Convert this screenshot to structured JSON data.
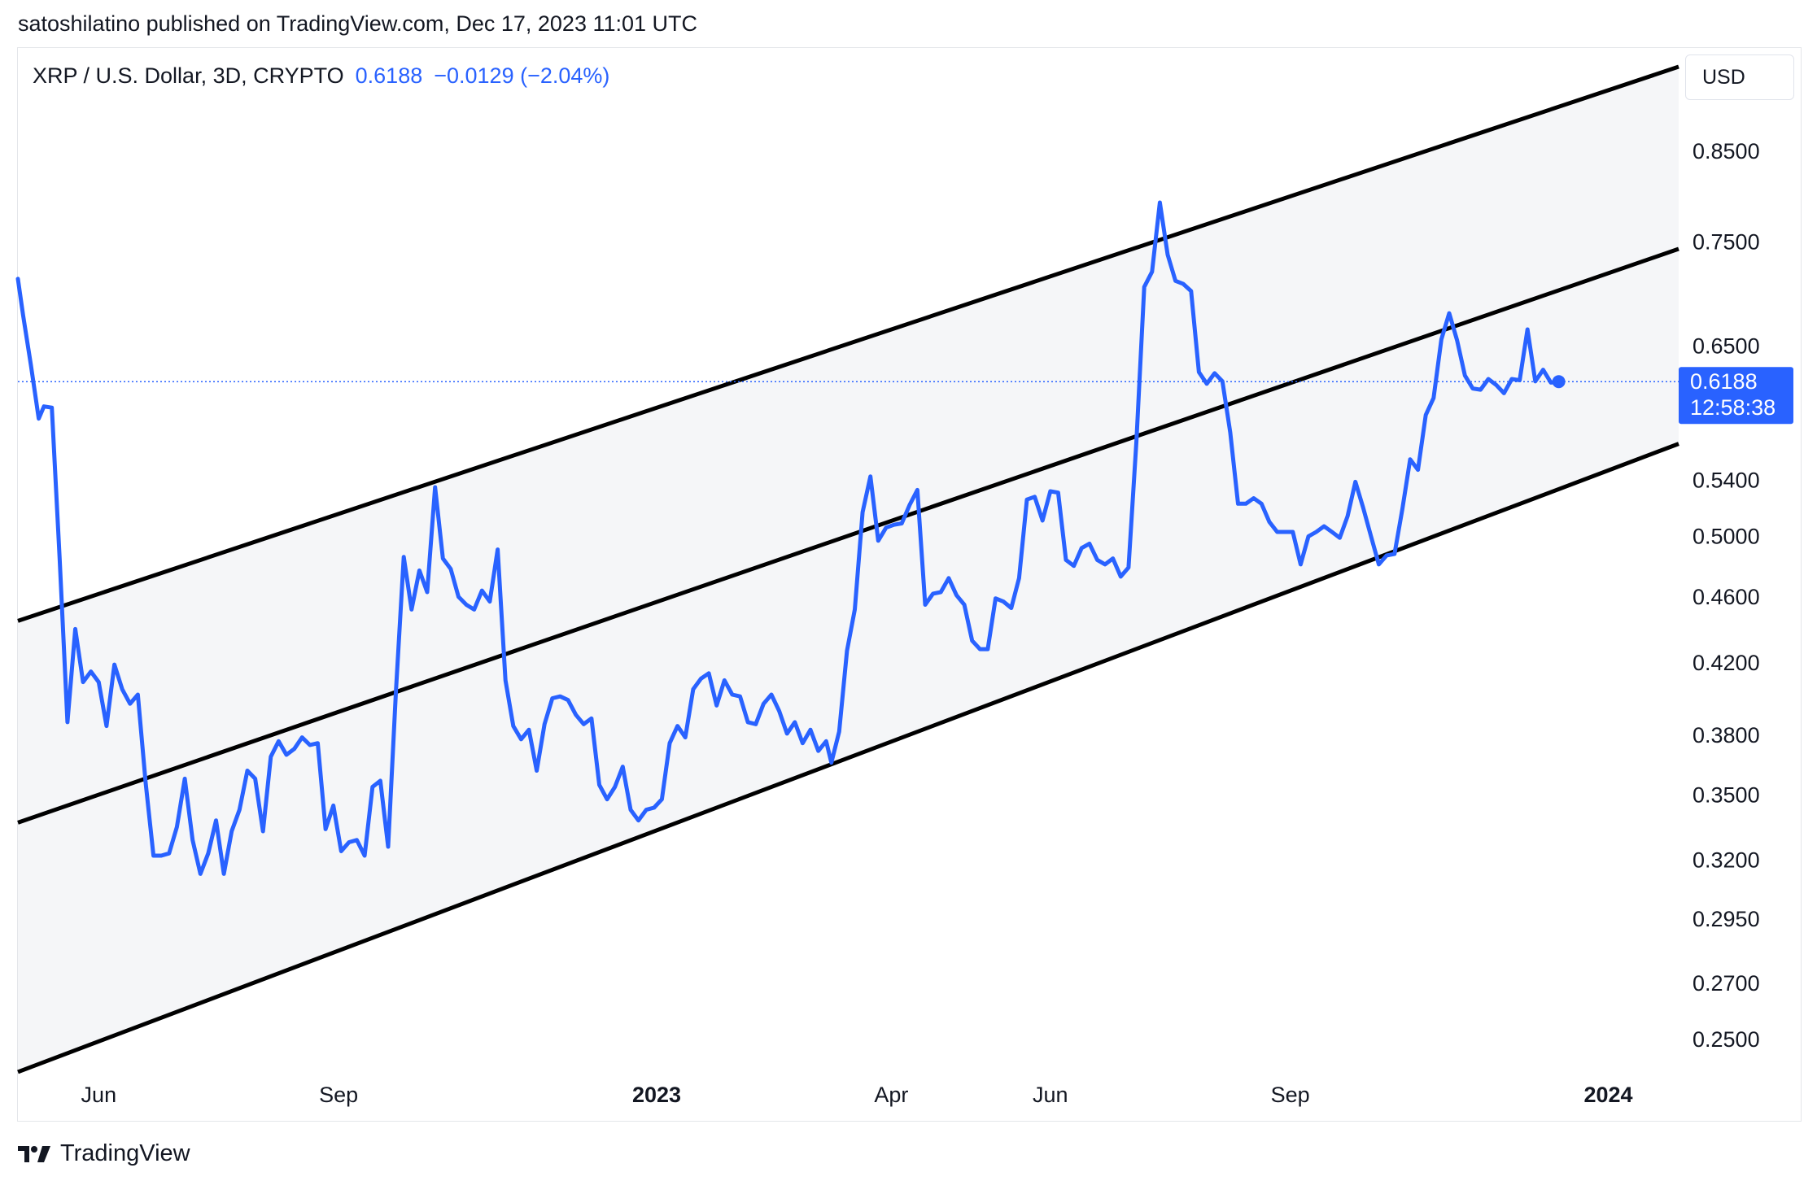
{
  "header": {
    "attribution": "satoshilatino published on TradingView.com, Dec 17, 2023 11:01 UTC"
  },
  "legend": {
    "symbol": "XRP / U.S. Dollar, 3D, CRYPTO",
    "last_price": "0.6188",
    "change": "−0.0129 (−2.04%)"
  },
  "currency_button": {
    "label": "USD"
  },
  "price_tag": {
    "price": "0.6188",
    "countdown": "12:58:38"
  },
  "footer": {
    "brand": "TradingView"
  },
  "colors": {
    "series": "#2962ff",
    "channel_lines": "#000000",
    "channel_fill": "#f5f6f8",
    "price_tag_bg": "#2962ff"
  },
  "icons": {
    "footer_logo": "tradingview-logo-icon"
  },
  "chart_data": {
    "type": "line",
    "title": "XRP / U.S. Dollar, 3D, CRYPTO",
    "y_scale": "log",
    "ylim": [
      0.235,
      0.98
    ],
    "y_ticks": [
      {
        "value": 0.85,
        "label": "0.8500"
      },
      {
        "value": 0.75,
        "label": "0.7500"
      },
      {
        "value": 0.65,
        "label": "0.6500"
      },
      {
        "value": 0.54,
        "label": "0.5400"
      },
      {
        "value": 0.5,
        "label": "0.5000"
      },
      {
        "value": 0.46,
        "label": "0.4600"
      },
      {
        "value": 0.42,
        "label": "0.4200"
      },
      {
        "value": 0.38,
        "label": "0.3800"
      },
      {
        "value": 0.35,
        "label": "0.3500"
      },
      {
        "value": 0.32,
        "label": "0.3200"
      },
      {
        "value": 0.295,
        "label": "0.2950"
      },
      {
        "value": 0.27,
        "label": "0.2700"
      },
      {
        "value": 0.25,
        "label": "0.2500"
      }
    ],
    "xlim": [
      "2022-05-01",
      "2024-01-28"
    ],
    "x_ticks": [
      {
        "date": "2022-06-01",
        "label": "Jun",
        "bold": false
      },
      {
        "date": "2022-09-01",
        "label": "Sep",
        "bold": false
      },
      {
        "date": "2023-01-01",
        "label": "2023",
        "bold": true
      },
      {
        "date": "2023-04-01",
        "label": "Apr",
        "bold": false
      },
      {
        "date": "2023-06-01",
        "label": "Jun",
        "bold": false
      },
      {
        "date": "2023-09-01",
        "label": "Sep",
        "bold": false
      },
      {
        "date": "2024-01-01",
        "label": "2024",
        "bold": true
      }
    ],
    "series": [
      {
        "values": [
          [
            "2022-05-01",
            0.713
          ],
          [
            "2022-05-03",
            0.678
          ],
          [
            "2022-05-06",
            0.633
          ],
          [
            "2022-05-09",
            0.588
          ],
          [
            "2022-05-11",
            0.598
          ],
          [
            "2022-05-14",
            0.597
          ],
          [
            "2022-05-17",
            0.485
          ],
          [
            "2022-05-20",
            0.387
          ],
          [
            "2022-05-23",
            0.44
          ],
          [
            "2022-05-26",
            0.409
          ],
          [
            "2022-05-29",
            0.415
          ],
          [
            "2022-06-01",
            0.409
          ],
          [
            "2022-06-04",
            0.385
          ],
          [
            "2022-06-07",
            0.419
          ],
          [
            "2022-06-10",
            0.405
          ],
          [
            "2022-06-13",
            0.397
          ],
          [
            "2022-06-16",
            0.402
          ],
          [
            "2022-06-19",
            0.356
          ],
          [
            "2022-06-22",
            0.322
          ],
          [
            "2022-06-25",
            0.322
          ],
          [
            "2022-06-28",
            0.323
          ],
          [
            "2022-07-01",
            0.335
          ],
          [
            "2022-07-04",
            0.358
          ],
          [
            "2022-07-07",
            0.329
          ],
          [
            "2022-07-10",
            0.314
          ],
          [
            "2022-07-13",
            0.323
          ],
          [
            "2022-07-16",
            0.338
          ],
          [
            "2022-07-19",
            0.314
          ],
          [
            "2022-07-22",
            0.333
          ],
          [
            "2022-07-25",
            0.343
          ],
          [
            "2022-07-28",
            0.362
          ],
          [
            "2022-07-31",
            0.358
          ],
          [
            "2022-08-03",
            0.333
          ],
          [
            "2022-08-06",
            0.369
          ],
          [
            "2022-08-09",
            0.377
          ],
          [
            "2022-08-12",
            0.37
          ],
          [
            "2022-08-15",
            0.373
          ],
          [
            "2022-08-18",
            0.379
          ],
          [
            "2022-08-21",
            0.375
          ],
          [
            "2022-08-24",
            0.376
          ],
          [
            "2022-08-27",
            0.334
          ],
          [
            "2022-08-30",
            0.345
          ],
          [
            "2022-09-02",
            0.324
          ],
          [
            "2022-09-05",
            0.328
          ],
          [
            "2022-09-08",
            0.329
          ],
          [
            "2022-09-11",
            0.322
          ],
          [
            "2022-09-14",
            0.354
          ],
          [
            "2022-09-17",
            0.357
          ],
          [
            "2022-09-20",
            0.326
          ],
          [
            "2022-09-23",
            0.404
          ],
          [
            "2022-09-26",
            0.486
          ],
          [
            "2022-09-29",
            0.452
          ],
          [
            "2022-10-02",
            0.477
          ],
          [
            "2022-10-05",
            0.463
          ],
          [
            "2022-10-08",
            0.535
          ],
          [
            "2022-10-11",
            0.485
          ],
          [
            "2022-10-14",
            0.478
          ],
          [
            "2022-10-17",
            0.46
          ],
          [
            "2022-10-20",
            0.455
          ],
          [
            "2022-10-23",
            0.452
          ],
          [
            "2022-10-26",
            0.464
          ],
          [
            "2022-10-29",
            0.457
          ],
          [
            "2022-11-01",
            0.491
          ],
          [
            "2022-11-04",
            0.41
          ],
          [
            "2022-11-07",
            0.385
          ],
          [
            "2022-11-10",
            0.378
          ],
          [
            "2022-11-13",
            0.383
          ],
          [
            "2022-11-16",
            0.362
          ],
          [
            "2022-11-19",
            0.386
          ],
          [
            "2022-11-22",
            0.4
          ],
          [
            "2022-11-25",
            0.401
          ],
          [
            "2022-11-28",
            0.399
          ],
          [
            "2022-12-01",
            0.391
          ],
          [
            "2022-12-04",
            0.386
          ],
          [
            "2022-12-07",
            0.389
          ],
          [
            "2022-12-10",
            0.355
          ],
          [
            "2022-12-13",
            0.348
          ],
          [
            "2022-12-16",
            0.354
          ],
          [
            "2022-12-19",
            0.364
          ],
          [
            "2022-12-22",
            0.343
          ],
          [
            "2022-12-25",
            0.338
          ],
          [
            "2022-12-28",
            0.343
          ],
          [
            "2022-12-31",
            0.344
          ],
          [
            "2023-01-03",
            0.348
          ],
          [
            "2023-01-06",
            0.376
          ],
          [
            "2023-01-09",
            0.385
          ],
          [
            "2023-01-12",
            0.379
          ],
          [
            "2023-01-15",
            0.405
          ],
          [
            "2023-01-18",
            0.411
          ],
          [
            "2023-01-21",
            0.414
          ],
          [
            "2023-01-24",
            0.396
          ],
          [
            "2023-01-27",
            0.41
          ],
          [
            "2023-01-30",
            0.402
          ],
          [
            "2023-02-02",
            0.401
          ],
          [
            "2023-02-05",
            0.387
          ],
          [
            "2023-02-08",
            0.386
          ],
          [
            "2023-02-11",
            0.397
          ],
          [
            "2023-02-14",
            0.402
          ],
          [
            "2023-02-17",
            0.393
          ],
          [
            "2023-02-20",
            0.381
          ],
          [
            "2023-02-23",
            0.387
          ],
          [
            "2023-02-26",
            0.376
          ],
          [
            "2023-03-01",
            0.383
          ],
          [
            "2023-03-04",
            0.372
          ],
          [
            "2023-03-07",
            0.377
          ],
          [
            "2023-03-09",
            0.366
          ],
          [
            "2023-03-12",
            0.382
          ],
          [
            "2023-03-15",
            0.427
          ],
          [
            "2023-03-18",
            0.452
          ],
          [
            "2023-03-21",
            0.517
          ],
          [
            "2023-03-24",
            0.543
          ],
          [
            "2023-03-27",
            0.497
          ],
          [
            "2023-03-30",
            0.506
          ],
          [
            "2023-04-02",
            0.508
          ],
          [
            "2023-04-05",
            0.509
          ],
          [
            "2023-04-08",
            0.522
          ],
          [
            "2023-04-11",
            0.533
          ],
          [
            "2023-04-14",
            0.455
          ],
          [
            "2023-04-17",
            0.462
          ],
          [
            "2023-04-20",
            0.463
          ],
          [
            "2023-04-23",
            0.472
          ],
          [
            "2023-04-26",
            0.461
          ],
          [
            "2023-04-29",
            0.455
          ],
          [
            "2023-05-02",
            0.433
          ],
          [
            "2023-05-05",
            0.428
          ],
          [
            "2023-05-08",
            0.428
          ],
          [
            "2023-05-11",
            0.459
          ],
          [
            "2023-05-14",
            0.457
          ],
          [
            "2023-05-17",
            0.453
          ],
          [
            "2023-05-20",
            0.472
          ],
          [
            "2023-05-23",
            0.526
          ],
          [
            "2023-05-26",
            0.528
          ],
          [
            "2023-05-29",
            0.511
          ],
          [
            "2023-06-01",
            0.532
          ],
          [
            "2023-06-04",
            0.531
          ],
          [
            "2023-06-07",
            0.484
          ],
          [
            "2023-06-10",
            0.48
          ],
          [
            "2023-06-13",
            0.492
          ],
          [
            "2023-06-16",
            0.495
          ],
          [
            "2023-06-19",
            0.484
          ],
          [
            "2023-06-22",
            0.481
          ],
          [
            "2023-06-25",
            0.485
          ],
          [
            "2023-06-28",
            0.473
          ],
          [
            "2023-07-01",
            0.479
          ],
          [
            "2023-07-04",
            0.57
          ],
          [
            "2023-07-07",
            0.705
          ],
          [
            "2023-07-10",
            0.72
          ],
          [
            "2023-07-13",
            0.792
          ],
          [
            "2023-07-16",
            0.737
          ],
          [
            "2023-07-19",
            0.711
          ],
          [
            "2023-07-22",
            0.708
          ],
          [
            "2023-07-25",
            0.701
          ],
          [
            "2023-07-28",
            0.627
          ],
          [
            "2023-07-31",
            0.617
          ],
          [
            "2023-08-03",
            0.626
          ],
          [
            "2023-08-06",
            0.619
          ],
          [
            "2023-08-09",
            0.577
          ],
          [
            "2023-08-12",
            0.523
          ],
          [
            "2023-08-15",
            0.523
          ],
          [
            "2023-08-18",
            0.527
          ],
          [
            "2023-08-21",
            0.523
          ],
          [
            "2023-08-24",
            0.51
          ],
          [
            "2023-08-27",
            0.503
          ],
          [
            "2023-08-30",
            0.503
          ],
          [
            "2023-09-02",
            0.503
          ],
          [
            "2023-09-05",
            0.481
          ],
          [
            "2023-09-08",
            0.5
          ],
          [
            "2023-09-11",
            0.503
          ],
          [
            "2023-09-14",
            0.507
          ],
          [
            "2023-09-17",
            0.503
          ],
          [
            "2023-09-20",
            0.499
          ],
          [
            "2023-09-23",
            0.514
          ],
          [
            "2023-09-26",
            0.539
          ],
          [
            "2023-09-29",
            0.52
          ],
          [
            "2023-10-02",
            0.5
          ],
          [
            "2023-10-05",
            0.481
          ],
          [
            "2023-10-08",
            0.487
          ],
          [
            "2023-10-11",
            0.488
          ],
          [
            "2023-10-14",
            0.519
          ],
          [
            "2023-10-17",
            0.556
          ],
          [
            "2023-10-20",
            0.548
          ],
          [
            "2023-10-23",
            0.591
          ],
          [
            "2023-10-26",
            0.605
          ],
          [
            "2023-10-29",
            0.656
          ],
          [
            "2023-11-01",
            0.68
          ],
          [
            "2023-11-04",
            0.655
          ],
          [
            "2023-11-07",
            0.624
          ],
          [
            "2023-11-10",
            0.613
          ],
          [
            "2023-11-13",
            0.612
          ],
          [
            "2023-11-16",
            0.621
          ],
          [
            "2023-11-19",
            0.616
          ],
          [
            "2023-11-22",
            0.609
          ],
          [
            "2023-11-25",
            0.621
          ],
          [
            "2023-11-28",
            0.62
          ],
          [
            "2023-12-01",
            0.665
          ],
          [
            "2023-12-04",
            0.619
          ],
          [
            "2023-12-07",
            0.629
          ],
          [
            "2023-12-10",
            0.618
          ],
          [
            "2023-12-13",
            0.6188
          ]
        ]
      }
    ],
    "channel": {
      "upper": [
        [
          "2022-05-01",
          0.445
        ],
        [
          "2024-01-28",
          0.955
        ]
      ],
      "mid": [
        [
          "2022-05-01",
          0.337
        ],
        [
          "2024-01-28",
          0.743
        ]
      ],
      "lower": [
        [
          "2022-05-01",
          0.239
        ],
        [
          "2024-01-28",
          0.568
        ]
      ]
    },
    "last_value": 0.6188,
    "grid": false,
    "legend_position": "top-left"
  }
}
